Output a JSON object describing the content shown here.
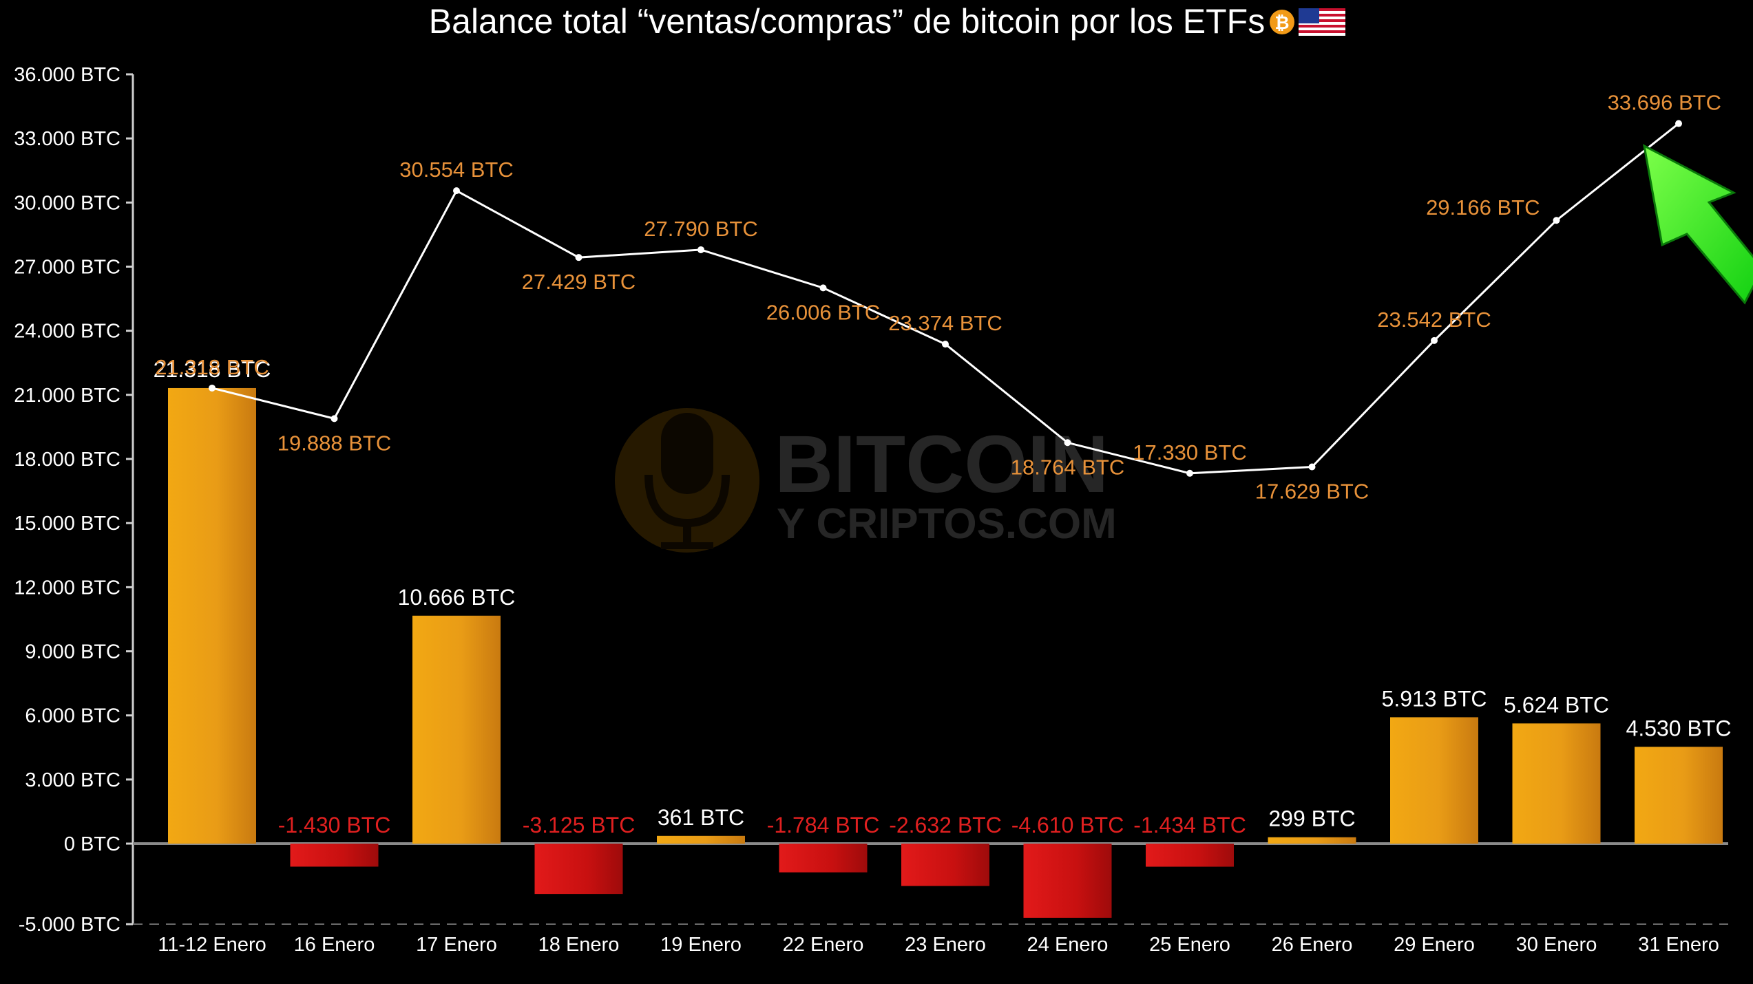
{
  "title": "Balance total “ventas/compras” de bitcoin por los ETFs",
  "title_icons": [
    "bitcoin-coin-icon",
    "us-flag-icon"
  ],
  "watermark": {
    "line1": "BITCOIN",
    "line2": "Y CRIPTOS.COM",
    "icon": "bitcoin-microphone-icon"
  },
  "colors": {
    "background": "#000000",
    "positive_bar": "#e8a01a",
    "negative_bar": "#d11212",
    "positive_label": "#ffffff",
    "negative_label": "#e02020",
    "line": "#ffffff",
    "line_label": "#e8923a",
    "axis": "#cfcfcf",
    "arrow": "#22ee22"
  },
  "chart_data": {
    "type": "bar",
    "categories": [
      "11-12 Enero",
      "16 Enero",
      "17 Enero",
      "18 Enero",
      "19 Enero",
      "22 Enero",
      "23 Enero",
      "24 Enero",
      "25 Enero",
      "26 Enero",
      "29 Enero",
      "30 Enero",
      "31 Enero"
    ],
    "series": [
      {
        "type": "bar",
        "values": [
          21318,
          -1430,
          10666,
          -3125,
          361,
          -1784,
          -2632,
          -4610,
          -1434,
          299,
          5913,
          5624,
          4530
        ],
        "labels": [
          "21.318 BTC",
          "-1.430 BTC",
          "10.666 BTC",
          "-3.125 BTC",
          "361 BTC",
          "-1.784 BTC",
          "-2.632 BTC",
          "-4.610 BTC",
          "-1.434 BTC",
          "299 BTC",
          "5.913 BTC",
          "5.624 BTC",
          "4.530 BTC"
        ]
      },
      {
        "type": "line",
        "values": [
          21318,
          19888,
          30554,
          27429,
          27790,
          26006,
          23374,
          18764,
          17330,
          17629,
          23542,
          29166,
          33696
        ],
        "labels": [
          "21.318 BTC",
          "19.888 BTC",
          "30.554 BTC",
          "27.429 BTC",
          "27.790 BTC",
          "26.006 BTC",
          "23.374 BTC",
          "18.764 BTC",
          "17.330 BTC",
          "17.629 BTC",
          "23.542 BTC",
          "29.166 BTC",
          "33.696 BTC"
        ],
        "label_position": [
          "above",
          "below",
          "above",
          "below",
          "above",
          "below",
          "above",
          "below",
          "above",
          "below",
          "above",
          "left",
          "above"
        ]
      }
    ],
    "yticks": [
      36000,
      33000,
      30000,
      27000,
      24000,
      21000,
      18000,
      15000,
      12000,
      9000,
      6000,
      3000,
      0,
      -5000
    ],
    "ytick_labels": [
      "36.000 BTC",
      "33.000 BTC",
      "30.000 BTC",
      "27.000 BTC",
      "24.000 BTC",
      "21.000 BTC",
      "18.000 BTC",
      "15.000 BTC",
      "12.000 BTC",
      "9.000 BTC",
      "6.000 BTC",
      "3.000 BTC",
      "0 BTC",
      "-5.000 BTC"
    ],
    "ylim": [
      -5000,
      36000
    ],
    "xlabel": "",
    "ylabel": "",
    "grid": false,
    "legend": "none",
    "annotation": "green-arrow-pointing-to-last-line-point"
  }
}
